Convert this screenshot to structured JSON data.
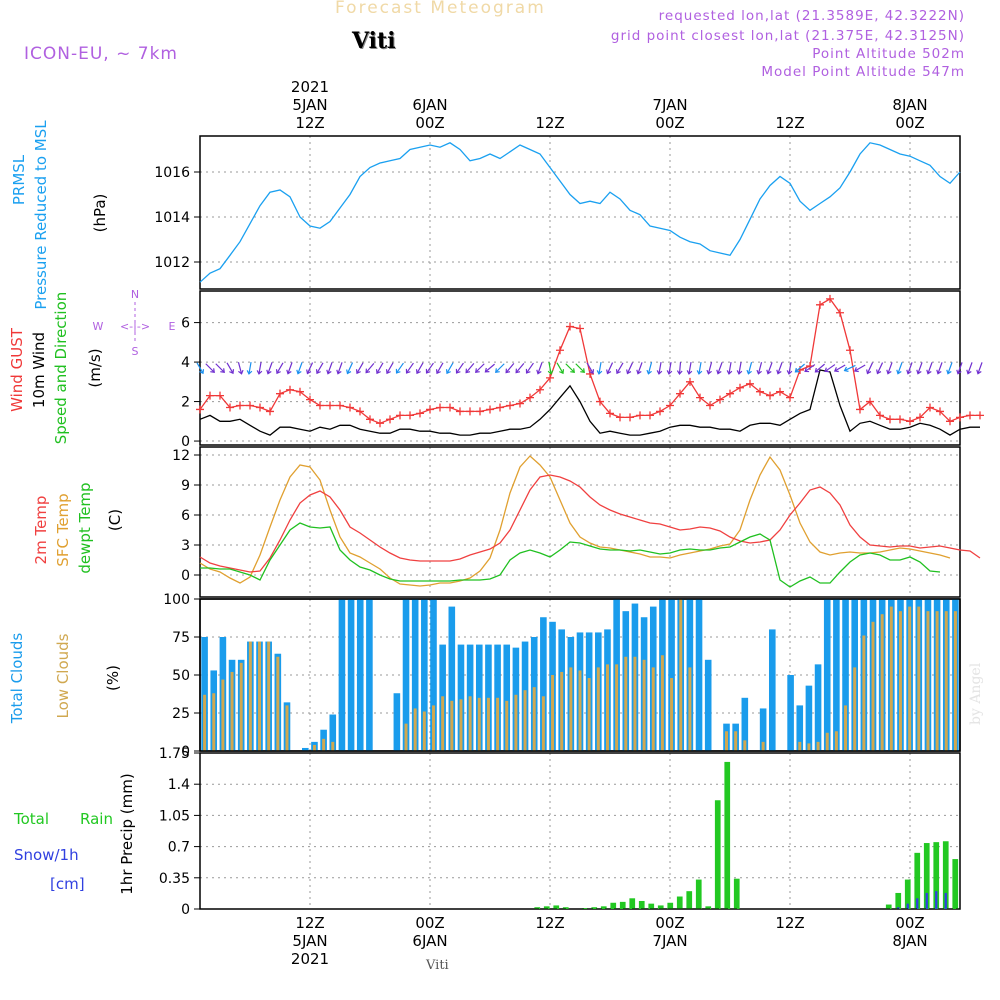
{
  "header": {
    "title": "Forecast Meteogram",
    "location": "Viti",
    "model": "ICON-EU, ~ 7km",
    "requested": "requested lon,lat (21.3589E, 42.3222N)",
    "gridpoint": "grid point closest lon,lat (21.375E, 42.3125N)",
    "point_altitude": "Point Altitude 502m",
    "model_altitude": "Model Point Altitude 547m",
    "footer": "Viti",
    "credit": "by Angel"
  },
  "colors": {
    "pressure": "#1aa0f0",
    "gust": "#f03838",
    "wind": "#000000",
    "wind_arrow": "#7030d0",
    "wind_arrow_alt": "#1a90f0",
    "temp2m": "#f04040",
    "sfc": "#e0a030",
    "dew": "#20c020",
    "total_cloud": "#1a9cec",
    "low_cloud": "#d0a850",
    "rain": "#22c822",
    "snow": "#3040e0",
    "label_purple": "#b060e0"
  },
  "chart_data": {
    "type": "meteogram",
    "x_range_hours": [
      0,
      76
    ],
    "time_labels_top": [
      {
        "hour": 11,
        "lines": [
          "2021",
          "5JAN",
          "12Z"
        ]
      },
      {
        "hour": 23,
        "lines": [
          "6JAN",
          "00Z"
        ]
      },
      {
        "hour": 35,
        "lines": [
          "12Z"
        ]
      },
      {
        "hour": 47,
        "lines": [
          "7JAN",
          "00Z"
        ]
      },
      {
        "hour": 59,
        "lines": [
          "12Z"
        ]
      },
      {
        "hour": 71,
        "lines": [
          "8JAN",
          "00Z"
        ]
      }
    ],
    "time_labels_bottom": [
      {
        "hour": 11,
        "lines": [
          "12Z",
          "5JAN",
          "2021"
        ]
      },
      {
        "hour": 23,
        "lines": [
          "00Z",
          "6JAN"
        ]
      },
      {
        "hour": 35,
        "lines": [
          "12Z"
        ]
      },
      {
        "hour": 47,
        "lines": [
          "00Z",
          "7JAN"
        ]
      },
      {
        "hour": 59,
        "lines": [
          "12Z"
        ]
      },
      {
        "hour": 71,
        "lines": [
          "00Z",
          "8JAN"
        ]
      }
    ],
    "pressure": {
      "labels": [
        "PRMSL",
        "Pressure Reduced to MSL"
      ],
      "unit": "(hPa)",
      "ylim": [
        1010.8,
        1017.6
      ],
      "ticks": [
        1012,
        1014,
        1016
      ],
      "values": [
        1011.1,
        1011.5,
        1011.7,
        1012.3,
        1012.9,
        1013.7,
        1014.5,
        1015.1,
        1015.2,
        1014.9,
        1014.0,
        1013.6,
        1013.5,
        1013.8,
        1014.4,
        1015.0,
        1015.8,
        1016.2,
        1016.4,
        1016.5,
        1016.6,
        1017.0,
        1017.1,
        1017.2,
        1017.1,
        1017.3,
        1017.0,
        1016.5,
        1016.6,
        1016.8,
        1016.6,
        1016.9,
        1017.2,
        1017.0,
        1016.8,
        1016.2,
        1015.6,
        1015.0,
        1014.6,
        1014.7,
        1014.6,
        1015.1,
        1014.8,
        1014.3,
        1014.1,
        1013.6,
        1013.5,
        1013.4,
        1013.1,
        1012.9,
        1012.8,
        1012.5,
        1012.4,
        1012.3,
        1013.0,
        1013.9,
        1014.8,
        1015.4,
        1015.8,
        1015.5,
        1014.7,
        1014.3,
        1014.6,
        1014.9,
        1015.3,
        1016.0,
        1016.8,
        1017.3,
        1017.2,
        1017.0,
        1016.8,
        1016.7,
        1016.5,
        1016.3,
        1015.8,
        1015.5,
        1016.0
      ]
    },
    "wind": {
      "labels": [
        "Wind GUST",
        "10m Wind",
        "Speed and Direction"
      ],
      "unit": "(m/s)",
      "compass": {
        "north": "N",
        "south": "S",
        "east": "E",
        "west": "W",
        "mid": "<-|->"
      },
      "ylim": [
        -0.2,
        7.6
      ],
      "ticks": [
        0,
        2,
        4,
        6
      ],
      "gust": [
        1.6,
        2.3,
        2.3,
        1.7,
        1.8,
        1.8,
        1.7,
        1.5,
        2.4,
        2.6,
        2.5,
        2.1,
        1.8,
        1.8,
        1.8,
        1.7,
        1.5,
        1.1,
        0.9,
        1.1,
        1.3,
        1.3,
        1.4,
        1.6,
        1.7,
        1.7,
        1.5,
        1.5,
        1.5,
        1.6,
        1.7,
        1.8,
        1.9,
        2.2,
        2.6,
        3.2,
        4.6,
        5.8,
        5.7,
        3.4,
        2.0,
        1.4,
        1.2,
        1.2,
        1.3,
        1.3,
        1.5,
        1.8,
        2.4,
        3.0,
        2.2,
        1.8,
        2.1,
        2.4,
        2.7,
        2.9,
        2.5,
        2.3,
        2.5,
        2.2,
        3.6,
        3.8,
        6.9,
        7.2,
        6.5,
        4.6,
        1.6,
        2.0,
        1.3,
        1.1,
        1.1,
        1.0,
        1.2,
        1.7,
        1.5,
        1.0,
        1.2,
        1.3,
        1.3
      ],
      "speed": [
        1.1,
        1.3,
        1.0,
        1.0,
        1.1,
        0.8,
        0.5,
        0.3,
        0.7,
        0.7,
        0.6,
        0.5,
        0.7,
        0.6,
        0.8,
        0.8,
        0.6,
        0.5,
        0.4,
        0.4,
        0.6,
        0.6,
        0.5,
        0.5,
        0.4,
        0.4,
        0.3,
        0.3,
        0.4,
        0.4,
        0.5,
        0.6,
        0.6,
        0.7,
        1.1,
        1.6,
        2.2,
        2.8,
        2.0,
        1.0,
        0.4,
        0.5,
        0.4,
        0.3,
        0.3,
        0.4,
        0.5,
        0.7,
        0.8,
        0.8,
        0.7,
        0.7,
        0.6,
        0.6,
        0.5,
        0.8,
        0.9,
        0.9,
        0.8,
        1.1,
        1.4,
        1.6,
        3.6,
        3.5,
        1.8,
        0.5,
        0.9,
        1.0,
        0.8,
        0.6,
        0.6,
        0.7,
        0.9,
        0.8,
        0.6,
        0.3,
        0.6,
        0.7,
        0.7
      ],
      "barb_dir_deg": [
        60,
        45,
        45,
        60,
        75,
        100,
        100,
        110,
        120,
        110,
        110,
        115,
        120,
        110,
        110,
        115,
        120,
        130,
        120,
        120,
        125,
        125,
        120,
        125,
        120,
        120,
        125,
        130,
        135,
        140,
        135,
        130,
        130,
        125,
        110,
        80,
        60,
        45,
        45,
        60,
        100,
        115,
        120,
        115,
        110,
        105,
        100,
        100,
        95,
        100,
        100,
        105,
        110,
        100,
        100,
        105,
        105,
        110,
        110,
        100,
        140,
        145,
        140,
        145,
        150,
        155,
        150,
        115,
        115,
        110,
        110,
        110,
        110,
        110,
        110,
        110,
        110,
        110,
        110
      ]
    },
    "temperature": {
      "labels": [
        "2m Temp",
        "SFC Temp",
        "dewpt Temp"
      ],
      "unit": "(C)",
      "ylim": [
        -2.2,
        12.8
      ],
      "ticks": [
        0,
        3,
        6,
        9,
        12
      ],
      "temp2m": [
        1.8,
        1.2,
        0.9,
        0.7,
        0.5,
        0.3,
        0.4,
        1.7,
        3.5,
        5.5,
        7.2,
        8.0,
        8.4,
        7.8,
        6.5,
        4.8,
        4.2,
        3.5,
        2.8,
        2.2,
        1.7,
        1.5,
        1.4,
        1.4,
        1.4,
        1.4,
        1.6,
        2.0,
        2.3,
        2.6,
        3.2,
        4.5,
        6.5,
        8.5,
        9.8,
        10.0,
        9.8,
        9.4,
        8.8,
        7.8,
        7.0,
        6.5,
        6.1,
        5.8,
        5.5,
        5.2,
        5.1,
        4.8,
        4.5,
        4.6,
        4.8,
        4.7,
        4.4,
        3.8,
        3.4,
        3.2,
        3.3,
        3.5,
        4.5,
        6.0,
        7.2,
        8.5,
        8.8,
        8.2,
        7.0,
        5.0,
        3.8,
        3.0,
        2.9,
        2.8,
        2.9,
        2.9,
        2.7,
        2.8,
        2.9,
        2.7,
        2.5,
        2.4,
        1.7
      ],
      "sfc": [
        1.2,
        0.6,
        0.3,
        -0.3,
        -0.8,
        -0.2,
        2.0,
        4.8,
        7.5,
        9.8,
        11.0,
        10.8,
        9.5,
        6.5,
        3.8,
        2.2,
        1.8,
        1.2,
        0.6,
        -0.3,
        -0.9,
        -1.0,
        -1.1,
        -1.0,
        -0.8,
        -0.8,
        -0.6,
        -0.3,
        0.4,
        1.7,
        4.5,
        8.2,
        10.8,
        11.9,
        11.0,
        9.8,
        7.5,
        5.2,
        3.8,
        3.2,
        2.8,
        2.7,
        2.5,
        2.3,
        2.1,
        1.8,
        1.8,
        1.7,
        2.0,
        2.2,
        2.4,
        2.6,
        2.9,
        3.1,
        4.5,
        7.5,
        10.0,
        11.8,
        10.5,
        8.0,
        5.2,
        3.3,
        2.3,
        2.0,
        2.2,
        2.3,
        2.2,
        2.2,
        2.3,
        2.5,
        2.7,
        2.6,
        2.4,
        2.2,
        2.0,
        1.7
      ],
      "dew": [
        0.7,
        0.7,
        0.6,
        0.6,
        0.3,
        0.0,
        -0.5,
        1.5,
        3.0,
        4.5,
        5.2,
        4.8,
        4.7,
        4.8,
        2.5,
        1.5,
        0.8,
        0.5,
        0.0,
        -0.4,
        -0.6,
        -0.6,
        -0.6,
        -0.6,
        -0.6,
        -0.6,
        -0.5,
        -0.5,
        -0.5,
        -0.4,
        0.0,
        1.5,
        2.2,
        2.5,
        2.2,
        1.8,
        2.5,
        3.3,
        3.2,
        2.9,
        2.6,
        2.5,
        2.5,
        2.4,
        2.5,
        2.3,
        2.1,
        2.2,
        2.5,
        2.6,
        2.5,
        2.5,
        2.7,
        2.8,
        3.3,
        3.8,
        4.1,
        3.5,
        -0.5,
        -1.2,
        -0.6,
        -0.2,
        -0.8,
        -0.8,
        0.3,
        1.3,
        2.0,
        2.2,
        2.0,
        1.5,
        1.5,
        1.8,
        1.3,
        0.4,
        0.3
      ],
      "sfc_note": "surface temp series"
    },
    "clouds": {
      "labels": [
        "Total Clouds",
        "Low Clouds"
      ],
      "unit": "(%)",
      "ylim": [
        0,
        100
      ],
      "ticks": [
        0,
        25,
        50,
        75,
        100
      ],
      "total": [
        75,
        53,
        75,
        60,
        60,
        72,
        72,
        72,
        64,
        32,
        0,
        2,
        6,
        14,
        24,
        100,
        100,
        100,
        100,
        0,
        0,
        38,
        100,
        100,
        100,
        100,
        70,
        95,
        70,
        70,
        70,
        70,
        70,
        70,
        68,
        72,
        75,
        88,
        85,
        80,
        75,
        78,
        78,
        78,
        80,
        100,
        92,
        97,
        88,
        95,
        100,
        100,
        100,
        100,
        100,
        60,
        0,
        18,
        18,
        35,
        0,
        28,
        80,
        0,
        50,
        30,
        43,
        57,
        100,
        100,
        100,
        100,
        100,
        100,
        100,
        100,
        100,
        100,
        100,
        100,
        100,
        100,
        100
      ],
      "low": [
        37,
        38,
        47,
        52,
        58,
        72,
        72,
        72,
        62,
        30,
        0,
        0,
        4,
        8,
        6,
        0,
        0,
        0,
        0,
        0,
        0,
        0,
        18,
        28,
        26,
        30,
        36,
        33,
        34,
        36,
        35,
        35,
        35,
        33,
        37,
        40,
        42,
        36,
        50,
        52,
        55,
        53,
        48,
        55,
        57,
        57,
        62,
        62,
        60,
        55,
        63,
        48,
        100,
        55,
        0,
        0,
        0,
        13,
        13,
        7,
        0,
        6,
        0,
        0,
        0,
        6,
        5,
        6,
        12,
        13,
        30,
        55,
        76,
        85,
        90,
        95,
        92,
        95,
        95,
        92,
        92,
        92,
        92
      ],
      "total_start_hour": 0.5
    },
    "precip": {
      "labels": [
        "Total",
        "Rain",
        "Snow/1h",
        "[cm]"
      ],
      "unit": "1hr Precip (mm)",
      "ylim": [
        0,
        1.75
      ],
      "ticks": [
        0,
        0.35,
        0.7,
        1.05,
        1.4,
        1.75
      ],
      "tick_labels": [
        "0",
        "0.35",
        "0.7",
        "1.05",
        "1.4",
        "1.75"
      ],
      "rain": [
        0,
        0,
        0,
        0,
        0,
        0,
        0,
        0,
        0,
        0,
        0,
        0,
        0,
        0,
        0,
        0,
        0,
        0,
        0,
        0,
        0,
        0,
        0,
        0,
        0,
        0,
        0,
        0,
        0,
        0,
        0,
        0,
        0,
        0,
        0,
        0.02,
        0.03,
        0.04,
        0.02,
        0,
        0.01,
        0.02,
        0.03,
        0.07,
        0.08,
        0.12,
        0.09,
        0.06,
        0.04,
        0.07,
        0.14,
        0.2,
        0.33,
        0.03,
        1.22,
        1.65,
        0.34,
        0,
        0,
        0,
        0,
        0,
        0,
        0,
        0,
        0,
        0,
        0,
        0,
        0,
        0,
        0,
        0.05,
        0.18,
        0.33,
        0.63,
        0.74,
        0.75,
        0.76,
        0.56
      ],
      "snow": [
        0,
        0,
        0,
        0,
        0,
        0,
        0,
        0,
        0,
        0,
        0,
        0,
        0,
        0,
        0,
        0,
        0,
        0,
        0,
        0,
        0,
        0,
        0,
        0,
        0,
        0,
        0,
        0,
        0,
        0,
        0,
        0,
        0,
        0,
        0,
        0,
        0,
        0,
        0,
        0,
        0,
        0,
        0,
        0,
        0,
        0,
        0,
        0,
        0,
        0,
        0,
        0,
        0,
        0,
        0,
        0,
        0,
        0,
        0,
        0,
        0,
        0,
        0,
        0,
        0,
        0,
        0,
        0,
        0,
        0,
        0,
        0,
        0,
        0.02,
        0.06,
        0.12,
        0.18,
        0.2,
        0.18
      ]
    }
  }
}
